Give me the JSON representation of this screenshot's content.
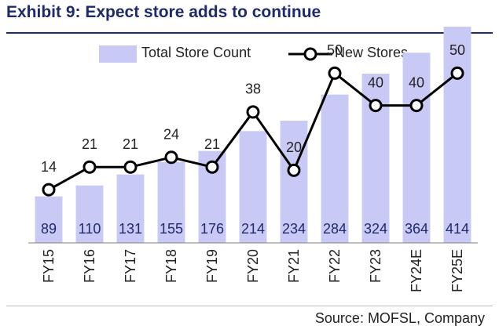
{
  "header": {
    "title": "Exhibit 9: Expect store adds to continue"
  },
  "colors": {
    "title": "#1f2a6b",
    "bar": "#c9c9f5",
    "line": "#000000",
    "marker_fill": "#ffffff"
  },
  "legend": {
    "bar_label": "Total Store Count",
    "line_label": "New Stores"
  },
  "footer": {
    "source": "Source: MOFSL, Company"
  },
  "chart_data": {
    "type": "bar",
    "categories": [
      "FY15",
      "FY16",
      "FY17",
      "FY18",
      "FY19",
      "FY20",
      "FY21",
      "FY22",
      "FY23",
      "FY24E",
      "FY25E"
    ],
    "series": [
      {
        "name": "Total Store Count",
        "type": "bar",
        "axis": "primary",
        "values": [
          89,
          110,
          131,
          155,
          176,
          214,
          234,
          284,
          324,
          364,
          414
        ]
      },
      {
        "name": "New Stores",
        "type": "line",
        "axis": "secondary",
        "values": [
          14,
          21,
          21,
          24,
          21,
          38,
          20,
          50,
          40,
          40,
          50
        ]
      }
    ],
    "ylim_primary": [
      0,
      450
    ],
    "ylim_secondary": [
      0,
      60
    ],
    "legend_position": "top",
    "grid": false
  }
}
